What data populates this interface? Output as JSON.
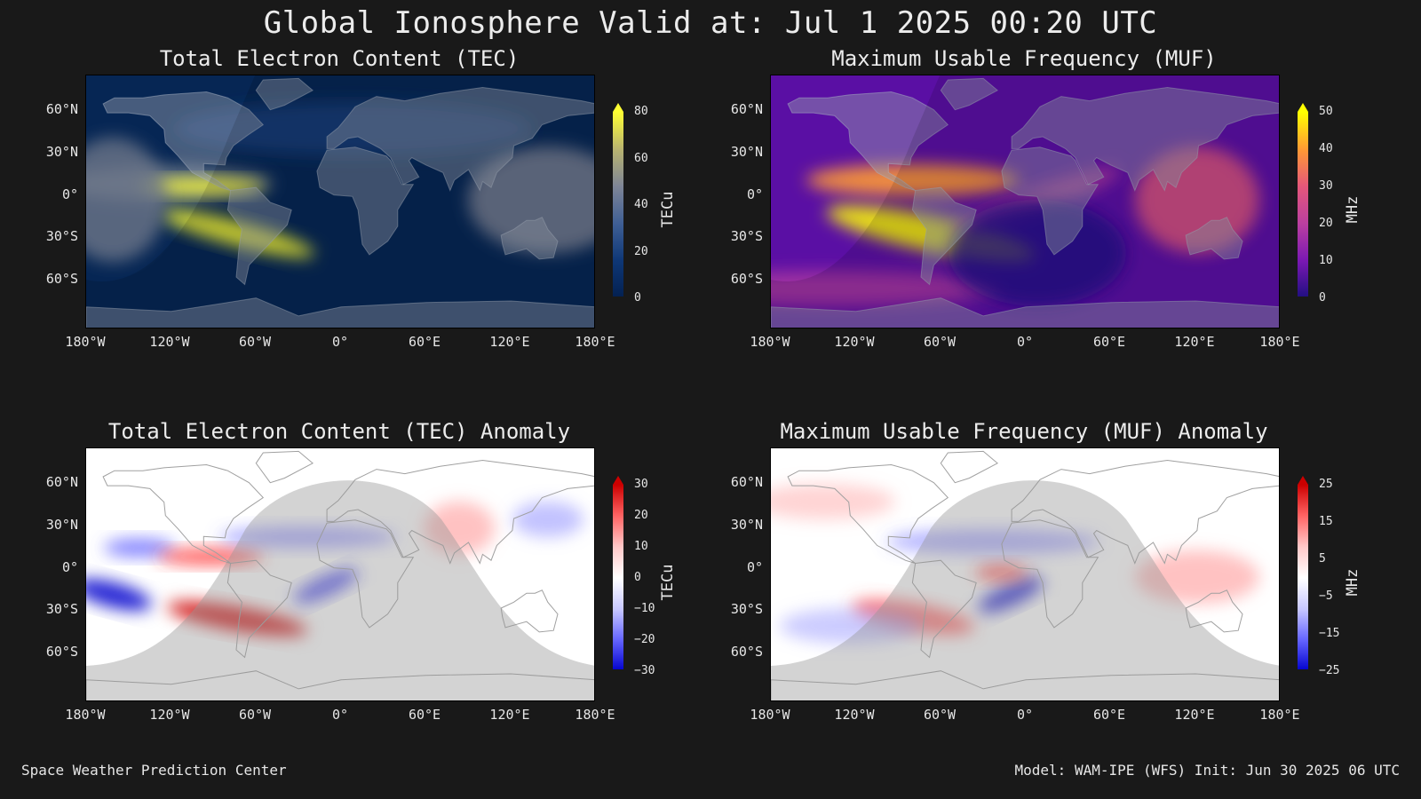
{
  "title": "Global Ionosphere Valid at: Jul 1 2025 00:20 UTC",
  "footer": {
    "left": "Space Weather Prediction Center",
    "right": "Model: WAM-IPE (WFS) Init: Jun 30 2025 06 UTC"
  },
  "lat_ticks": [
    "60°N",
    "30°N",
    "0°",
    "30°S",
    "60°S"
  ],
  "lon_ticks": [
    "180°W",
    "120°W",
    "60°W",
    "0°",
    "60°E",
    "120°E",
    "180°E"
  ],
  "panels": [
    {
      "title": "Total Electron Content (TEC)",
      "unit": "TECu",
      "cbar_ticks": [
        "80",
        "60",
        "40",
        "20",
        "0"
      ],
      "colors": [
        "#ffff33",
        "#b9b470",
        "#7e8596",
        "#3f5f95",
        "#0e3776",
        "#032050"
      ]
    },
    {
      "title": "Maximum Usable Frequency (MUF)",
      "unit": "MHz",
      "cbar_ticks": [
        "50",
        "40",
        "30",
        "20",
        "10",
        "0"
      ],
      "colors": [
        "#ffff00",
        "#ff9a33",
        "#e5577a",
        "#bb3fa0",
        "#7a18b3",
        "#1e0f80"
      ]
    },
    {
      "title": "Total Electron Content (TEC) Anomaly",
      "unit": "TECu",
      "cbar_ticks": [
        "30",
        "20",
        "10",
        "0",
        "−10",
        "−20",
        "−30"
      ],
      "colors": [
        "#cc0000",
        "#ff6464",
        "#ffc8c8",
        "#ffffff",
        "#c8c8ff",
        "#6464ff",
        "#0000cc"
      ]
    },
    {
      "title": "Maximum Usable Frequency (MUF) Anomaly",
      "unit": "MHz",
      "cbar_ticks": [
        "25",
        "15",
        "5",
        "−5",
        "−15",
        "−25"
      ],
      "colors": [
        "#cc0000",
        "#ff6464",
        "#ffc8c8",
        "#ffffff",
        "#c8c8ff",
        "#6464ff",
        "#0000cc"
      ]
    }
  ]
}
